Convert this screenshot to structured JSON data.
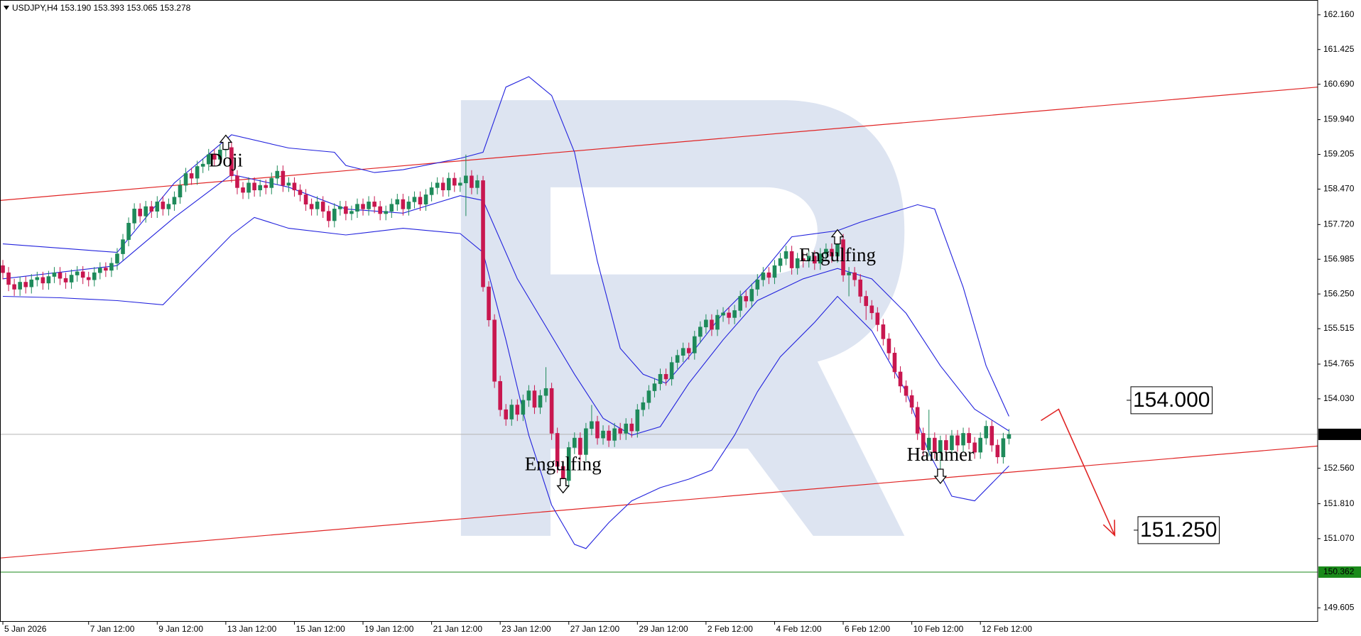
{
  "chart_data": {
    "type": "candlestick",
    "title": "USDJPY,H4 153.190 153.393 153.065 153.278",
    "categories": [
      "5 Jan 2026",
      null,
      null,
      null,
      null,
      null,
      null,
      null,
      null,
      null,
      null,
      null,
      null,
      null,
      null,
      "7 Jan 12:00",
      null,
      null,
      null,
      null,
      null,
      null,
      null,
      null,
      null,
      null,
      null,
      "9 Jan 12:00",
      null,
      null,
      null,
      null,
      null,
      null,
      null,
      null,
      null,
      null,
      null,
      "13 Jan 12:00",
      null,
      null,
      null,
      null,
      null,
      null,
      null,
      null,
      null,
      null,
      null,
      "15 Jan 12:00",
      null,
      null,
      null,
      null,
      null,
      null,
      null,
      null,
      null,
      null,
      null,
      "19 Jan 12:00",
      null,
      null,
      null,
      null,
      null,
      null,
      null,
      null,
      null,
      null,
      null,
      "21 Jan 12:00",
      null,
      null,
      null,
      null,
      null,
      null,
      null,
      null,
      null,
      null,
      null,
      "23 Jan 12:00",
      null,
      null,
      null,
      null,
      null,
      null,
      null,
      null,
      null,
      null,
      null,
      "27 Jan 12:00",
      null,
      null,
      null,
      null,
      null,
      null,
      null,
      null,
      null,
      null,
      null,
      "29 Jan 12:00",
      null,
      null,
      null,
      null,
      null,
      null,
      null,
      null,
      null,
      null,
      null,
      "2 Feb 12:00",
      null,
      null,
      null,
      null,
      null,
      null,
      null,
      null,
      null,
      null,
      null,
      "4 Feb 12:00",
      null,
      null,
      null,
      null,
      null,
      null,
      null,
      null,
      null,
      null,
      null,
      "6 Feb 12:00",
      null,
      null,
      null,
      null,
      null,
      null,
      null,
      null,
      null,
      null,
      null,
      "10 Feb 12:00",
      null,
      null,
      null,
      null,
      null,
      null,
      null,
      null,
      null,
      null,
      null,
      "12 Feb 12:00",
      null,
      null,
      null,
      null,
      null
    ],
    "open": [
      156.85,
      156.7,
      156.45,
      156.35,
      156.5,
      156.4,
      156.55,
      156.6,
      156.48,
      156.62,
      156.7,
      156.58,
      156.5,
      156.65,
      156.72,
      156.6,
      156.55,
      156.7,
      156.8,
      156.75,
      156.9,
      157.1,
      157.4,
      157.75,
      158.05,
      157.9,
      158.1,
      158.0,
      158.2,
      158.05,
      158.15,
      158.3,
      158.55,
      158.8,
      158.7,
      158.95,
      159.0,
      159.2,
      159.1,
      159.3,
      159.35,
      158.75,
      158.5,
      158.4,
      158.6,
      158.45,
      158.55,
      158.5,
      158.7,
      158.85,
      158.55,
      158.6,
      158.45,
      158.35,
      158.15,
      158.05,
      158.2,
      158.0,
      157.8,
      158.05,
      158.1,
      157.95,
      158.0,
      158.15,
      158.05,
      158.2,
      158.1,
      157.95,
      158.0,
      158.15,
      158.25,
      158.05,
      158.2,
      158.3,
      158.15,
      158.35,
      158.5,
      158.6,
      158.45,
      158.7,
      158.55,
      158.6,
      158.75,
      158.5,
      158.65,
      156.4,
      155.7,
      154.4,
      153.8,
      153.6,
      153.9,
      153.7,
      154.0,
      154.2,
      153.85,
      154.1,
      154.25,
      153.3,
      152.6,
      152.3,
      153.0,
      153.2,
      152.85,
      153.4,
      153.55,
      153.2,
      153.35,
      153.15,
      153.4,
      153.3,
      153.5,
      153.35,
      153.8,
      153.95,
      154.2,
      154.35,
      154.55,
      154.45,
      154.8,
      154.95,
      155.1,
      155.0,
      155.35,
      155.55,
      155.7,
      155.5,
      155.8,
      155.85,
      155.75,
      155.9,
      156.2,
      156.1,
      156.35,
      156.55,
      156.7,
      156.6,
      156.85,
      157.0,
      157.15,
      156.8,
      157.0,
      156.95,
      157.05,
      156.9,
      157.1,
      157.2,
      157.05,
      157.4,
      156.65,
      156.7,
      156.55,
      156.2,
      156.0,
      155.85,
      155.6,
      155.3,
      155.0,
      154.6,
      154.3,
      154.1,
      153.85,
      153.3,
      152.95,
      153.2,
      152.9,
      153.15,
      152.95,
      153.25,
      153.05,
      153.3,
      153.1,
      152.9,
      153.2,
      153.45,
      153.05,
      152.8,
      153.19
    ],
    "high": [
      156.97,
      156.82,
      156.57,
      156.62,
      156.62,
      156.67,
      156.72,
      156.72,
      156.74,
      156.82,
      156.82,
      156.7,
      156.77,
      156.84,
      156.84,
      156.72,
      156.82,
      156.92,
      156.92,
      157.02,
      157.22,
      157.52,
      157.87,
      158.17,
      158.17,
      158.22,
      158.22,
      158.32,
      158.32,
      158.27,
      158.42,
      158.67,
      158.92,
      158.92,
      159.07,
      159.12,
      159.32,
      159.32,
      159.42,
      159.55,
      159.47,
      158.87,
      158.62,
      158.72,
      158.72,
      158.67,
      158.67,
      158.82,
      158.97,
      158.97,
      158.72,
      158.72,
      158.57,
      158.47,
      158.27,
      158.32,
      158.32,
      158.12,
      158.17,
      158.22,
      158.22,
      158.12,
      158.27,
      158.27,
      158.32,
      158.32,
      158.22,
      158.12,
      158.27,
      158.37,
      158.37,
      158.32,
      158.42,
      158.42,
      158.47,
      158.62,
      158.72,
      158.72,
      158.82,
      158.82,
      158.72,
      159.2,
      158.87,
      158.77,
      158.75,
      156.52,
      155.82,
      154.52,
      153.92,
      154.02,
      154.02,
      154.12,
      154.32,
      154.32,
      154.22,
      154.7,
      154.37,
      153.42,
      152.72,
      153.12,
      153.32,
      153.32,
      153.52,
      153.9,
      153.67,
      153.47,
      153.47,
      153.52,
      153.52,
      153.62,
      153.62,
      153.92,
      154.07,
      154.32,
      154.47,
      154.67,
      154.67,
      154.92,
      155.07,
      155.22,
      155.22,
      155.47,
      155.67,
      155.82,
      155.82,
      155.92,
      155.97,
      155.97,
      156.02,
      156.32,
      156.32,
      156.47,
      156.67,
      156.82,
      156.82,
      156.97,
      157.12,
      157.27,
      157.27,
      157.12,
      157.12,
      157.17,
      157.17,
      157.22,
      157.32,
      157.32,
      157.55,
      157.52,
      156.82,
      156.82,
      156.67,
      156.32,
      156.12,
      155.97,
      155.72,
      155.42,
      155.12,
      154.72,
      154.42,
      154.22,
      153.97,
      153.42,
      153.8,
      153.32,
      153.25,
      153.27,
      153.37,
      153.37,
      153.42,
      153.42,
      153.22,
      153.32,
      153.57,
      153.57,
      153.17,
      153.31,
      153.393
    ],
    "low": [
      156.56,
      156.31,
      156.21,
      156.21,
      156.26,
      156.26,
      156.41,
      156.34,
      156.34,
      156.48,
      156.44,
      156.36,
      156.36,
      156.51,
      156.46,
      156.41,
      156.41,
      156.56,
      156.61,
      156.61,
      156.76,
      156.96,
      157.26,
      157.61,
      157.76,
      157.76,
      157.86,
      157.86,
      157.91,
      157.91,
      158.01,
      158.16,
      158.41,
      158.56,
      158.56,
      158.81,
      158.86,
      158.96,
      158.96,
      159.15,
      158.61,
      158.36,
      158.26,
      158.26,
      158.31,
      158.31,
      158.36,
      158.36,
      158.56,
      158.41,
      158.41,
      158.31,
      158.21,
      158.01,
      157.91,
      157.91,
      157.86,
      157.66,
      157.66,
      157.91,
      157.81,
      157.81,
      157.86,
      157.91,
      157.91,
      157.96,
      157.81,
      157.81,
      157.86,
      158.01,
      157.91,
      157.91,
      158.06,
      158.01,
      158.01,
      158.21,
      158.36,
      158.31,
      158.31,
      158.41,
      158.41,
      157.9,
      158.36,
      158.36,
      156.3,
      155.56,
      154.26,
      153.66,
      153.46,
      153.46,
      153.56,
      153.56,
      153.86,
      153.71,
      153.71,
      153.96,
      153.16,
      152.46,
      152.1,
      152.16,
      152.86,
      152.71,
      152.71,
      153.26,
      153.06,
      153.06,
      153.01,
      153.01,
      153.16,
      153.16,
      153.21,
      153.21,
      153.66,
      153.81,
      154.06,
      154.21,
      154.31,
      154.31,
      154.66,
      154.81,
      154.86,
      154.86,
      155.21,
      155.41,
      155.36,
      155.36,
      155.66,
      155.61,
      155.61,
      155.76,
      155.96,
      155.96,
      156.21,
      156.41,
      156.46,
      156.46,
      156.71,
      156.86,
      156.66,
      156.66,
      156.81,
      156.81,
      156.76,
      156.76,
      156.96,
      156.91,
      156.91,
      156.51,
      156.2,
      156.41,
      156.06,
      155.7,
      155.71,
      155.46,
      155.16,
      154.86,
      154.46,
      154.16,
      153.96,
      153.71,
      153.16,
      152.81,
      152.81,
      152.76,
      152.3,
      152.81,
      152.81,
      152.91,
      152.91,
      152.96,
      152.76,
      152.76,
      153.06,
      152.91,
      152.66,
      152.66,
      153.065
    ],
    "close": [
      156.7,
      156.45,
      156.35,
      156.5,
      156.4,
      156.55,
      156.6,
      156.48,
      156.62,
      156.7,
      156.58,
      156.5,
      156.65,
      156.72,
      156.6,
      156.55,
      156.7,
      156.8,
      156.75,
      156.9,
      157.1,
      157.4,
      157.75,
      158.05,
      157.9,
      158.1,
      158.0,
      158.2,
      158.05,
      158.15,
      158.3,
      158.55,
      158.8,
      158.7,
      158.95,
      159.0,
      159.2,
      159.1,
      159.3,
      159.35,
      158.75,
      158.5,
      158.4,
      158.6,
      158.45,
      158.55,
      158.5,
      158.7,
      158.85,
      158.55,
      158.6,
      158.45,
      158.35,
      158.15,
      158.05,
      158.2,
      158.0,
      157.8,
      158.05,
      158.1,
      157.95,
      158.0,
      158.15,
      158.05,
      158.2,
      158.1,
      157.95,
      158.0,
      158.15,
      158.25,
      158.05,
      158.2,
      158.3,
      158.15,
      158.35,
      158.5,
      158.6,
      158.45,
      158.7,
      158.55,
      158.6,
      158.75,
      158.5,
      158.65,
      156.4,
      155.7,
      154.4,
      153.8,
      153.6,
      153.9,
      153.7,
      154.0,
      154.2,
      153.85,
      154.1,
      154.25,
      153.3,
      152.6,
      152.3,
      153.0,
      153.2,
      152.85,
      153.4,
      153.55,
      153.2,
      153.35,
      153.15,
      153.4,
      153.3,
      153.5,
      153.35,
      153.8,
      153.95,
      154.2,
      154.35,
      154.55,
      154.45,
      154.8,
      154.95,
      155.1,
      155.0,
      155.35,
      155.55,
      155.7,
      155.5,
      155.8,
      155.85,
      155.75,
      155.9,
      156.2,
      156.1,
      156.35,
      156.55,
      156.7,
      156.6,
      156.85,
      157.0,
      157.15,
      156.8,
      157.0,
      156.95,
      157.05,
      156.9,
      157.1,
      157.2,
      157.05,
      157.4,
      156.65,
      156.7,
      156.55,
      156.2,
      156.0,
      155.85,
      155.6,
      155.3,
      155.0,
      154.6,
      154.3,
      154.1,
      153.85,
      153.3,
      152.95,
      153.2,
      152.9,
      153.15,
      152.95,
      153.25,
      153.05,
      153.3,
      153.1,
      152.9,
      153.2,
      153.45,
      153.05,
      152.8,
      153.19,
      153.278
    ],
    "up_color": "#1e8a5a",
    "down_color": "#c8174f",
    "xlim": [
      -0.5,
      230
    ],
    "ylim": [
      149.31,
      162.473
    ],
    "yticks": [
      {
        "value": 162.16,
        "label": "162.160"
      },
      161.425,
      {
        "value": 160.69,
        "label": "160.690"
      },
      {
        "value": 159.94,
        "label": "159.940"
      },
      159.205,
      {
        "value": 158.47,
        "label": "158.470"
      },
      {
        "value": 157.72,
        "label": "157.720"
      },
      156.985,
      {
        "value": 156.25,
        "label": "156.250"
      },
      155.515,
      154.765,
      {
        "value": 154.03,
        "label": "154.030"
      },
      {
        "value": 152.56,
        "label": "152.560"
      },
      {
        "value": 151.81,
        "label": "151.810"
      },
      {
        "value": 151.07,
        "label": "151.070"
      },
      149.605
    ],
    "bands": [
      {
        "color": "#2222dd",
        "x": [
          0,
          10,
          20,
          30,
          40,
          50,
          58,
          60,
          65,
          70,
          80,
          84,
          88,
          92,
          96,
          100,
          104,
          108,
          112,
          116,
          120,
          126,
          132,
          138,
          146,
          150,
          160,
          163,
          168,
          172,
          176
        ],
        "values": [
          157.31,
          157.22,
          157.13,
          158.6,
          159.62,
          159.34,
          159.25,
          158.97,
          158.82,
          158.88,
          159.12,
          159.25,
          160.63,
          160.85,
          160.45,
          159.25,
          156.94,
          155.1,
          154.55,
          154.36,
          154.92,
          155.84,
          156.57,
          157.46,
          157.59,
          157.77,
          158.14,
          158.05,
          156.39,
          154.73,
          153.66
        ]
      },
      {
        "color": "#2222dd",
        "x": [
          0,
          20,
          30,
          40,
          50,
          60,
          70,
          80,
          84,
          90,
          100,
          105,
          110,
          115,
          120,
          126,
          132,
          140,
          146,
          152,
          158,
          164,
          170,
          176
        ],
        "values": [
          156.57,
          156.85,
          157.87,
          158.78,
          158.51,
          158.05,
          157.96,
          158.33,
          158.23,
          156.57,
          154.55,
          153.62,
          153.26,
          153.44,
          154.36,
          155.28,
          156.11,
          156.57,
          156.79,
          156.57,
          155.84,
          154.73,
          153.81,
          153.35
        ]
      },
      {
        "color": "#2222dd",
        "x": [
          0,
          10,
          20,
          28,
          34,
          40,
          44,
          50,
          60,
          70,
          80,
          84,
          88,
          92,
          96,
          100,
          102,
          106,
          110,
          115,
          120,
          124,
          128,
          132,
          136,
          142,
          146,
          152,
          158,
          162,
          166,
          170,
          176
        ],
        "values": [
          156.2,
          156.17,
          156.11,
          156.02,
          156.76,
          157.5,
          157.87,
          157.64,
          157.5,
          157.64,
          157.53,
          157.13,
          155.28,
          153.26,
          151.78,
          150.95,
          150.86,
          151.41,
          151.87,
          152.15,
          152.33,
          152.52,
          153.26,
          154.18,
          154.92,
          155.65,
          156.2,
          155.47,
          154.18,
          152.89,
          151.97,
          151.87,
          152.61
        ]
      }
    ],
    "channels": [
      {
        "color": "#e02424",
        "x": [
          -0.5,
          230
        ],
        "values": [
          158.23,
          160.63
        ]
      },
      {
        "color": "#e02424",
        "x": [
          -0.5,
          230
        ],
        "values": [
          150.66,
          153.03
        ]
      }
    ],
    "hlines": [
      {
        "value": 153.278,
        "color": "#b4b4b4",
        "label_color": "#000000"
      },
      {
        "value": 150.362,
        "color": "#1a8a1a",
        "label_color": "#1a8a1a"
      }
    ],
    "forecast": {
      "color": "#e02424",
      "x": [
        181.6,
        184.7,
        194.5
      ],
      "values": [
        153.57,
        153.81,
        151.14
      ]
    },
    "levels": [
      {
        "value": 154,
        "label": "154.000"
      },
      {
        "value": 151.25,
        "label": "151.250"
      }
    ],
    "patterns": [
      "Doji",
      "Engulfing",
      "Engulfing",
      "Hammer"
    ]
  }
}
